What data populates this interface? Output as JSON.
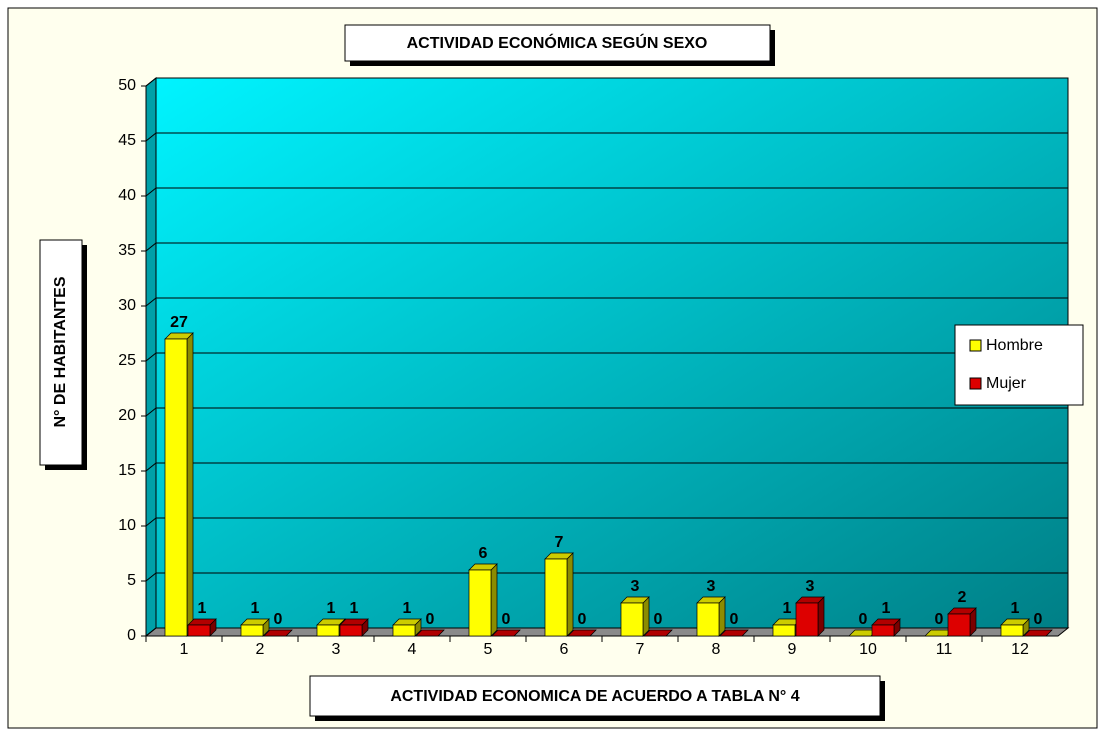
{
  "chart_data": {
    "type": "bar",
    "title": "ACTIVIDAD ECONÓMICA SEGÚN SEXO",
    "x_label": "ACTIVIDAD ECONOMICA DE ACUERDO A TABLA N° 4",
    "y_label": "N° DE HABITANTES",
    "categories": [
      "1",
      "2",
      "3",
      "4",
      "5",
      "6",
      "7",
      "8",
      "9",
      "10",
      "11",
      "12"
    ],
    "series": [
      {
        "name": "Hombre",
        "color": "#ffff00",
        "values": [
          27,
          1,
          1,
          1,
          6,
          7,
          3,
          3,
          1,
          0,
          0,
          1
        ]
      },
      {
        "name": "Mujer",
        "color": "#dd0000",
        "values": [
          1,
          0,
          1,
          0,
          0,
          0,
          0,
          0,
          3,
          1,
          2,
          0
        ]
      }
    ],
    "ylim": [
      0,
      50
    ],
    "yticks": [
      0,
      5,
      10,
      15,
      20,
      25,
      30,
      35,
      40,
      45,
      50
    ],
    "grid": true,
    "legend": "right"
  }
}
